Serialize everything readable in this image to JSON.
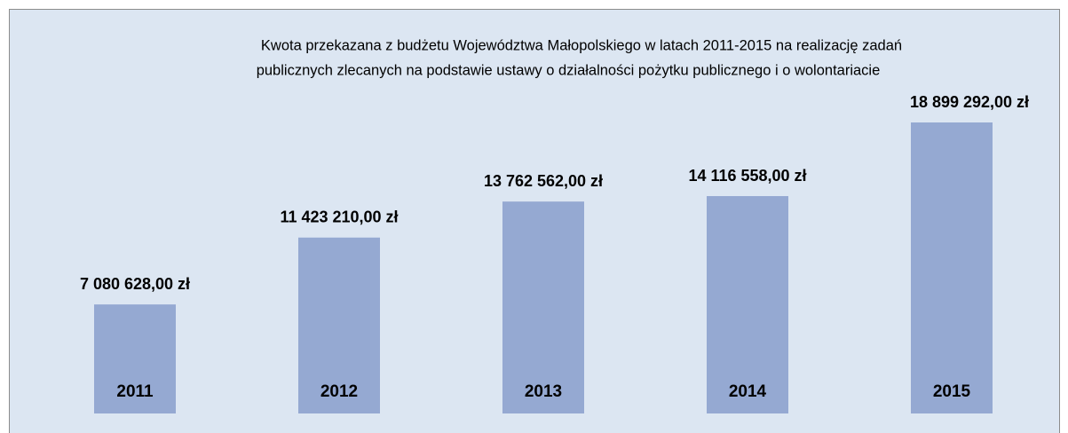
{
  "chart_data": {
    "type": "bar",
    "title": [
      "Kwota przekazana z budżetu Województwa Małopolskiego w latach 2011-2015 na realizację zadań",
      "publicznych zlecanych na podstawie ustawy o działalności pożytku publicznego i o wolontariacie"
    ],
    "categories": [
      "2011",
      "2012",
      "2013",
      "2014",
      "2015"
    ],
    "values": [
      7080628,
      11423210,
      13762562,
      14116558,
      18899292
    ],
    "value_labels": [
      "7 080 628,00 zł",
      "11 423 210,00 zł",
      "13 762 562,00 zł",
      "14 116 558,00 zł",
      "18 899 292,00 zł"
    ],
    "color": "#95a9d2"
  }
}
